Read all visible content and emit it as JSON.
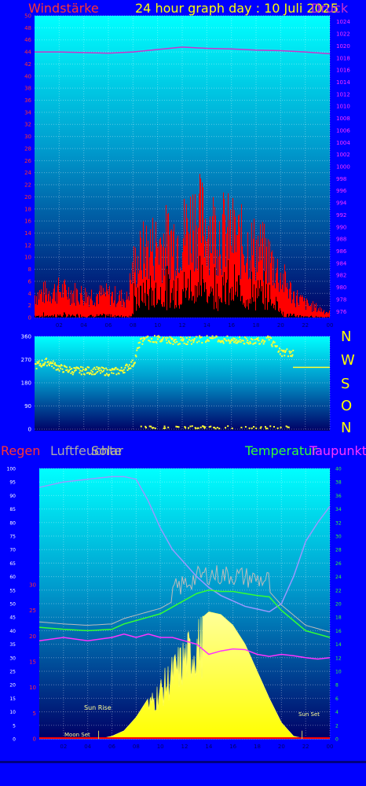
{
  "header": {
    "title": "24 hour graph day : 10 Juli 2025",
    "left_label": "Windstärke",
    "right_label": "Druck"
  },
  "middle": {
    "compass": [
      "N",
      "W",
      "S",
      "O",
      "N"
    ]
  },
  "bottom": {
    "labels": {
      "regen": "Regen",
      "luftfeuchte": "Luftfeuchte",
      "solar": "Solar",
      "temperatur": "Temperatur",
      "taupunkt": "Taupunkt"
    },
    "annotations": {
      "sunrise": "Sun Rise",
      "moonset": "Moon Set",
      "sunset": "Sun Set"
    }
  },
  "colors": {
    "background": "#0000ff",
    "wind_avg": "#ff0000",
    "wind_gust": "#000000",
    "pressure": "#cc33cc",
    "direction": "#ffff33",
    "humidity": "#9999ff",
    "solar": "#ffff66",
    "temperature": "#33ff33",
    "dewpoint": "#ff33ff",
    "rain": "#ff0000"
  },
  "chart_data": [
    {
      "type": "line",
      "name": "wind",
      "x_ticks": [
        "02",
        "04",
        "06",
        "08",
        "10",
        "12",
        "14",
        "16",
        "18",
        "20",
        "22",
        "00"
      ],
      "y_ticks_left": [
        "0",
        "2",
        "4",
        "6",
        "8",
        "10",
        "12",
        "14",
        "16",
        "18",
        "20",
        "22",
        "24",
        "26",
        "28",
        "30",
        "32",
        "34",
        "36",
        "38",
        "40",
        "42",
        "44",
        "46",
        "48",
        "50"
      ],
      "y_ticks_right": [
        "976",
        "978",
        "980",
        "982",
        "984",
        "986",
        "988",
        "990",
        "992",
        "994",
        "996",
        "998",
        "1000",
        "1002",
        "1004",
        "1006",
        "1008",
        "1010",
        "1012",
        "1014",
        "1016",
        "1018",
        "1020",
        "1022",
        "1024"
      ],
      "ylim_left": [
        0,
        50
      ],
      "ylim_right": [
        975,
        1025
      ],
      "series": [
        {
          "name": "Windstärke",
          "x": [
            0,
            2,
            4,
            6,
            7.5,
            8,
            9,
            10,
            11,
            12,
            13,
            14,
            15,
            16,
            17,
            18,
            19,
            20,
            21,
            22,
            23,
            24
          ],
          "values": [
            5,
            6,
            5,
            5,
            4,
            11,
            15,
            16,
            17,
            18,
            22,
            20,
            19,
            18,
            16,
            15,
            13,
            9,
            5,
            3,
            2,
            1
          ]
        },
        {
          "name": "Druck",
          "x": [
            0,
            2,
            4,
            6,
            8,
            10,
            12,
            14,
            16,
            18,
            20,
            22,
            24
          ],
          "values": [
            1019.0,
            1019.0,
            1018.9,
            1018.8,
            1019.0,
            1019.4,
            1019.8,
            1019.6,
            1019.5,
            1019.3,
            1019.2,
            1019.0,
            1018.7
          ]
        }
      ]
    },
    {
      "type": "scatter",
      "name": "direction",
      "y_ticks": [
        "0",
        "90",
        "180",
        "270",
        "360"
      ],
      "ylim": [
        0,
        360
      ],
      "series": [
        {
          "name": "Windrichtung",
          "x": [
            0,
            1,
            2,
            3,
            4,
            5,
            6,
            7,
            8,
            8.5,
            9,
            10,
            11,
            12,
            13,
            14,
            15,
            16,
            17,
            18,
            19,
            20,
            21,
            22,
            23,
            24
          ],
          "values": [
            250,
            265,
            240,
            230,
            230,
            230,
            225,
            230,
            260,
            340,
            350,
            352,
            348,
            345,
            350,
            352,
            348,
            350,
            346,
            348,
            350,
            300,
            300,
            240,
            240,
            240
          ]
        }
      ]
    },
    {
      "type": "line",
      "name": "climate",
      "x_ticks": [
        "02",
        "04",
        "06",
        "08",
        "10",
        "12",
        "14",
        "16",
        "18",
        "20",
        "22",
        "00"
      ],
      "y_ticks_left": [
        "0",
        "5",
        "10",
        "15",
        "20",
        "25",
        "30",
        "35",
        "40",
        "45",
        "50",
        "55",
        "60",
        "65",
        "70",
        "75",
        "80",
        "85",
        "90",
        "95",
        "100"
      ],
      "y_ticks_rain": [
        "0",
        "5",
        "10",
        "15",
        "20",
        "25",
        "30"
      ],
      "y_ticks_right": [
        "0",
        "2",
        "4",
        "6",
        "8",
        "10",
        "12",
        "14",
        "16",
        "18",
        "20",
        "22",
        "24",
        "26",
        "28",
        "30",
        "32",
        "34",
        "36",
        "38",
        "40"
      ],
      "series": [
        {
          "name": "Luftfeuchte",
          "x": [
            0,
            2,
            4,
            6,
            7,
            8,
            9,
            10,
            11,
            12,
            13,
            14,
            15,
            16,
            17,
            18,
            19,
            20,
            21,
            22,
            23,
            24
          ],
          "values": [
            93,
            95,
            96,
            97,
            97,
            96,
            88,
            78,
            70,
            65,
            60,
            56,
            53,
            51,
            49,
            48,
            47,
            50,
            60,
            73,
            80,
            86
          ]
        },
        {
          "name": "Solar",
          "x": [
            0,
            4,
            5,
            6,
            7,
            8,
            9,
            10,
            11,
            12,
            13,
            14,
            15,
            16,
            17,
            18,
            19,
            20,
            21,
            22,
            24
          ],
          "values": [
            0,
            0,
            0,
            1,
            3,
            8,
            15,
            22,
            30,
            37,
            43,
            47,
            46,
            42,
            35,
            25,
            15,
            6,
            1,
            0,
            0
          ]
        },
        {
          "name": "Temperatur",
          "x": [
            0,
            2,
            4,
            6,
            7,
            8,
            9,
            10,
            11,
            12,
            13,
            14,
            15,
            16,
            17,
            18,
            19,
            20,
            21,
            22,
            23,
            24
          ],
          "values": [
            16.5,
            16.2,
            16.0,
            16.2,
            17.0,
            17.5,
            18.0,
            18.5,
            19.5,
            20.5,
            21.5,
            22.0,
            21.8,
            21.8,
            21.5,
            21.2,
            21.0,
            19.0,
            17.5,
            16.0,
            15.5,
            15.0
          ]
        },
        {
          "name": "Taupunkt",
          "x": [
            0,
            2,
            4,
            6,
            7,
            8,
            9,
            10,
            11,
            12,
            13,
            14,
            15,
            16,
            17,
            18,
            19,
            20,
            21,
            22,
            23,
            24
          ],
          "values": [
            14.5,
            15.0,
            14.5,
            15.0,
            15.5,
            15.0,
            15.5,
            15.0,
            15.0,
            14.5,
            14.0,
            12.5,
            13.0,
            13.3,
            13.2,
            12.5,
            12.2,
            12.5,
            12.3,
            12.0,
            11.8,
            12.0
          ]
        },
        {
          "name": "Regen",
          "x": [
            0,
            24
          ],
          "values": [
            0,
            0
          ]
        }
      ]
    }
  ]
}
